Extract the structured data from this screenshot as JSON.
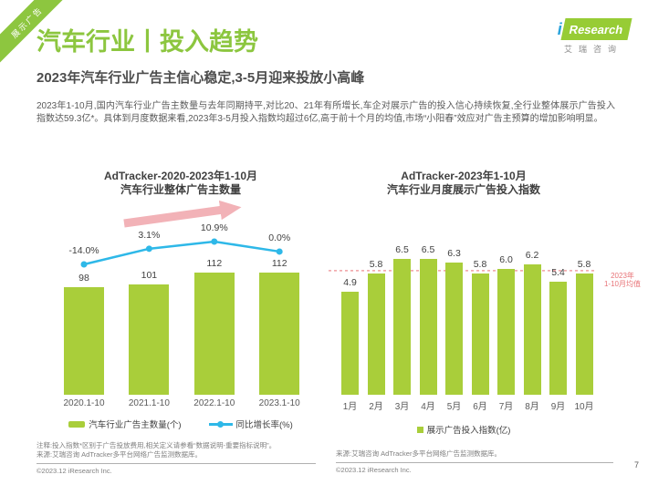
{
  "ribbon": {
    "label": "展示广告"
  },
  "header": {
    "title": "汽车行业丨投入趋势",
    "subtitle": "2023年汽车行业广告主信心稳定,3-5月迎来投放小高峰",
    "logo": {
      "i_mark": "i",
      "wordmark": "Research",
      "cn": "艾瑞咨询"
    }
  },
  "body": {
    "paragraph": "2023年1-10月,国内汽车行业广告主数量与去年同期持平,对比20、21年有所增长,车企对展示广告的投入信心持续恢复,全行业整体展示广告投入指数达59.3亿*。具体到月度数据来看,2023年3-5月投入指数均超过6亿,高于前十个月的均值,市场“小阳春”效应对广告主预算的增加影响明显。"
  },
  "colors": {
    "brand_green": "#8cc63f",
    "bar_green": "#a9ce3a",
    "line_cyan": "#2eb8e8",
    "arrow_pink": "#f2b2b7",
    "mean_pink": "#f0a0a4",
    "mean_label_pink": "#e87478",
    "text_dark": "#404040",
    "text_gray": "#595959"
  },
  "chart_data": [
    {
      "type": "bar",
      "title_line1": "AdTracker-2020-2023年1-10月",
      "title_line2": "汽车行业整体广告主数量",
      "categories": [
        "2020.1-10",
        "2021.1-10",
        "2022.1-10",
        "2023.1-10"
      ],
      "series": [
        {
          "name": "汽车行业广告主数量(个)",
          "type": "bar",
          "values": [
            98,
            101,
            112,
            112
          ]
        },
        {
          "name": "同比增长率(%)",
          "type": "line",
          "values": [
            -14.0,
            3.1,
            10.9,
            0.0
          ],
          "labels": [
            "-14.0%",
            "3.1%",
            "10.9%",
            "0.0%"
          ]
        }
      ],
      "annotation": "upward-trend-arrow",
      "legend_position": "bottom"
    },
    {
      "type": "bar",
      "title_line1": "AdTracker-2023年1-10月",
      "title_line2": "汽车行业月度展示广告投入指数",
      "categories": [
        "1月",
        "2月",
        "3月",
        "4月",
        "5月",
        "6月",
        "7月",
        "8月",
        "9月",
        "10月"
      ],
      "values": [
        4.9,
        5.8,
        6.5,
        6.5,
        6.3,
        5.8,
        6.0,
        6.2,
        5.4,
        5.8
      ],
      "legend_label": "展示广告投入指数(亿)",
      "mean_line": {
        "value": 5.92,
        "label_line1": "2023年",
        "label_line2": "1-10月均值"
      },
      "legend_position": "bottom"
    }
  ],
  "footer": {
    "left": {
      "note": "注释:投入指数*区别于广告投放费用,相关定义请参看“数据说明-重要指标说明”。",
      "source": "来源:艾瑞咨询 AdTracker多平台网络广告监测数据库。",
      "copyright": "©2023.12 iResearch Inc."
    },
    "right": {
      "source": "来源:艾瑞咨询 AdTracker多平台网络广告监测数据库。",
      "copyright": "©2023.12 iResearch Inc."
    },
    "page_number": "7"
  }
}
